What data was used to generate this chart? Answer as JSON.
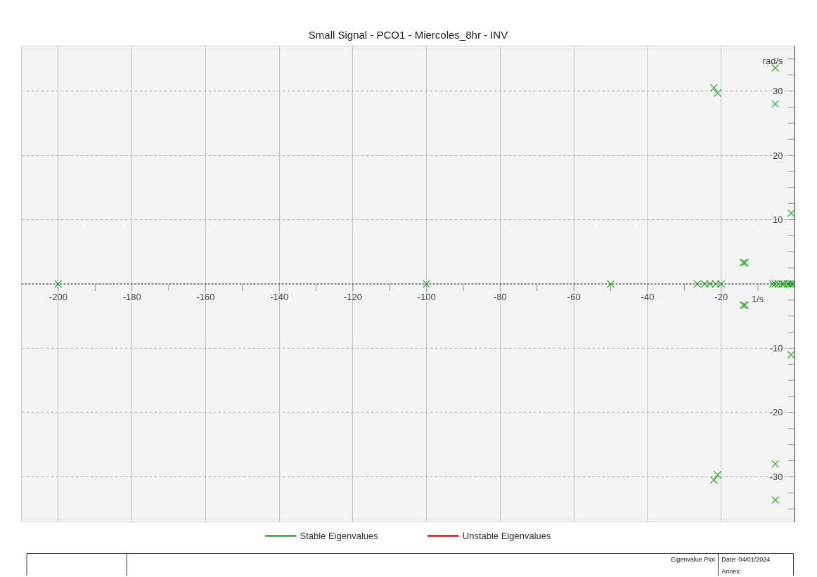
{
  "chart_data": {
    "type": "scatter",
    "title": "Small Signal - PCO1 - Miercoles_8hr - INV",
    "xlabel": "1/s",
    "ylabel": "rad/s",
    "xlim": [
      -210,
      0
    ],
    "ylim": [
      -37,
      37
    ],
    "xticks": [
      -200,
      {
        "value": -190,
        "label": null
      },
      -180,
      {
        "value": -170,
        "label": null
      },
      -160,
      {
        "value": -150,
        "label": null
      },
      -140,
      {
        "value": -130,
        "label": null
      },
      -120,
      {
        "value": -110,
        "label": null
      },
      -100,
      {
        "value": -90,
        "label": null
      },
      -80,
      {
        "value": -70,
        "label": null
      },
      -60,
      {
        "value": -50,
        "label": null
      },
      -40,
      {
        "value": -30,
        "label": null
      },
      -20,
      {
        "value": -10,
        "label": null
      }
    ],
    "yticks": [
      {
        "value": -35,
        "label": null
      },
      {
        "value": -32.5,
        "label": null
      },
      -30,
      {
        "value": -27.5,
        "label": null
      },
      {
        "value": -25,
        "label": null
      },
      {
        "value": -22.5,
        "label": null
      },
      -20,
      {
        "value": -17.5,
        "label": null
      },
      {
        "value": -15,
        "label": null
      },
      {
        "value": -12.5,
        "label": null
      },
      -10,
      {
        "value": -7.5,
        "label": null
      },
      {
        "value": -5,
        "label": null
      },
      {
        "value": -2.5,
        "label": null
      },
      {
        "value": 2.5,
        "label": null
      },
      {
        "value": 5,
        "label": null
      },
      {
        "value": 7.5,
        "label": null
      },
      10,
      {
        "value": 12.5,
        "label": null
      },
      {
        "value": 15,
        "label": null
      },
      {
        "value": 17.5,
        "label": null
      },
      20,
      {
        "value": 22.5,
        "label": null
      },
      {
        "value": 25,
        "label": null
      },
      {
        "value": 27.5,
        "label": null
      },
      30,
      {
        "value": 32.5,
        "label": null
      },
      {
        "value": 35,
        "label": null
      }
    ],
    "grid": true,
    "legend": "bottom",
    "marker": "cross",
    "ref_lines": [
      {
        "axis": "y",
        "value": 0,
        "color": "#222222",
        "line_style": "dashed"
      }
    ],
    "series": [
      {
        "name": "Stable Eigenvalues",
        "color": "#22aa22",
        "x": [
          -200,
          -100,
          -50,
          -26.5,
          -24.5,
          -23,
          -21.5,
          -20,
          -6,
          -5.3,
          -4.5,
          -3.5,
          -3,
          -2,
          -1.5,
          -1,
          -0.5,
          -22,
          -22,
          -21,
          -21,
          -5.3,
          -5.3,
          -5.3,
          -5.3,
          -1,
          -1,
          -14,
          -14,
          -13.5,
          -13.5
        ],
        "values": [
          0,
          0,
          0,
          0,
          0,
          0,
          0,
          0,
          0,
          0,
          0,
          0,
          0,
          0,
          0,
          0,
          0,
          30.5,
          -30.5,
          29.7,
          -29.7,
          33.6,
          -33.6,
          28,
          -28,
          11,
          -11,
          3.3,
          -3.3,
          3.3,
          -3.3
        ]
      },
      {
        "name": "Unstable Eigenvalues",
        "color": "#ff0000"
      }
    ],
    "annotations": [
      "Eigenvalue Plot",
      "Date: 04/01/2024",
      "Annex:"
    ]
  }
}
